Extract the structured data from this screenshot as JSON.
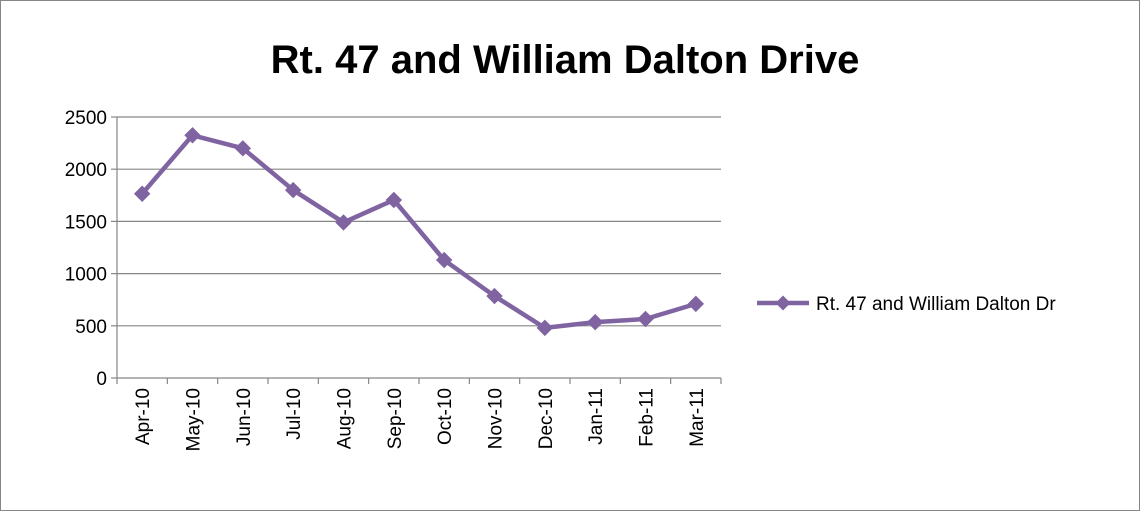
{
  "chart_data": {
    "type": "line",
    "title": "Rt. 47 and William Dalton Drive",
    "xlabel": "",
    "ylabel": "",
    "categories": [
      "Apr-10",
      "May-10",
      "Jun-10",
      "Jul-10",
      "Aug-10",
      "Sep-10",
      "Oct-10",
      "Nov-10",
      "Dec-10",
      "Jan-11",
      "Feb-11",
      "Mar-11"
    ],
    "series": [
      {
        "name": "Rt. 47 and William Dalton Dr",
        "values": [
          1765,
          2325,
          2200,
          1800,
          1490,
          1705,
          1130,
          785,
          480,
          535,
          565,
          710
        ],
        "color": "#8064A2"
      }
    ],
    "ylim": [
      0,
      2500
    ],
    "yticks": [
      0,
      500,
      1000,
      1500,
      2000,
      2500
    ],
    "grid": true,
    "legend_position": "right",
    "gridline_color": "#868686",
    "axis_color": "#868686"
  }
}
